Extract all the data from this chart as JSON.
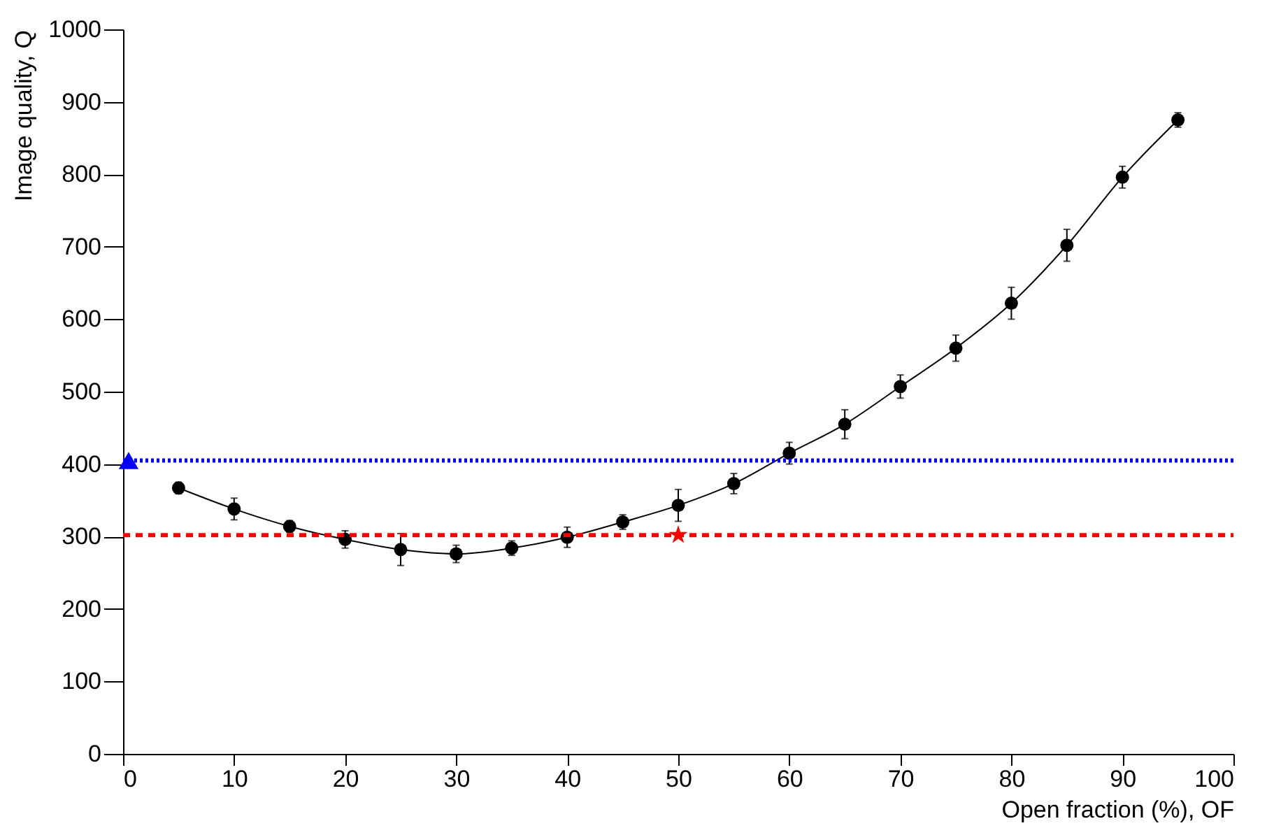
{
  "chart_data": {
    "type": "line",
    "xlabel": "Open fraction (%), OF",
    "ylabel": "Image quality, Q",
    "xlim": [
      0,
      100
    ],
    "xticks": [
      0,
      10,
      20,
      30,
      40,
      50,
      60,
      70,
      80,
      90,
      100
    ],
    "ylim": [
      0,
      1000
    ],
    "yticks": [
      0,
      100,
      200,
      300,
      400,
      500,
      600,
      700,
      800,
      900,
      {
        "value": 1000,
        "label": "1000"
      }
    ],
    "grid": false,
    "series": [
      {
        "type": "line",
        "color": "#000000",
        "marker": "circle",
        "line_style": "solid",
        "x": [
          5,
          10,
          15,
          20,
          25,
          30,
          35,
          40,
          45,
          50,
          55,
          60,
          65,
          70,
          75,
          80,
          85,
          90,
          95
        ],
        "values": [
          367,
          338,
          314,
          296,
          282,
          276,
          284,
          299,
          320,
          343,
          373,
          415,
          455,
          507,
          560,
          622,
          702,
          796,
          875
        ],
        "errors": [
          8,
          15,
          8,
          12,
          22,
          12,
          10,
          14,
          10,
          22,
          14,
          15,
          20,
          16,
          18,
          22,
          22,
          15,
          10
        ]
      },
      {
        "type": "scatter",
        "color": "#0000ff",
        "marker": "triangle",
        "x": [
          0.5
        ],
        "values": [
          405
        ]
      },
      {
        "type": "scatter",
        "color": "#ff0000",
        "marker": "star",
        "x": [
          50
        ],
        "values": [
          302
        ]
      }
    ],
    "ref_lines": [
      {
        "axis": "y",
        "value": 405,
        "color": "#0000ff",
        "line_style": "dotted"
      },
      {
        "axis": "y",
        "value": 302,
        "color": "#ff0000",
        "line_style": "dashed"
      }
    ]
  }
}
